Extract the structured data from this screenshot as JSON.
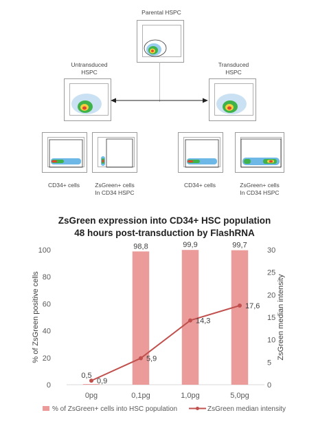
{
  "flow_panel": {
    "parental_label": "Parental HSPC",
    "untransduced_label_line1": "Untransduced",
    "untransduced_label_line2": "HSPC",
    "transduced_label_line1": "Transduced",
    "transduced_label_line2": "HSPC",
    "left_cd34_label": "CD34+ cells",
    "left_zs_label_line1": "ZsGreen+ cells",
    "left_zs_label_line2": "In CD34 HSPC",
    "right_cd34_label": "CD34+ cells",
    "right_zs_label_line1": "ZsGreen+ cells",
    "right_zs_label_line2": "In CD34 HSPC"
  },
  "chart_data": {
    "type": "bar",
    "title_line1": "ZsGreen expression into CD34+ HSC population",
    "title_line2": "48 hours post-transduction by FlashRNA",
    "categories": [
      "0pg",
      "0,1pg",
      "1,0pg",
      "5,0pg"
    ],
    "series": [
      {
        "name": "% of ZsGreen+ cells into HSC population",
        "type": "bar",
        "axis": "left",
        "values": [
          0.5,
          98.8,
          99.9,
          99.7
        ],
        "labels": [
          "0,5",
          "98,8",
          "99,9",
          "99,7"
        ],
        "color": "#ec9b9b"
      },
      {
        "name": "ZsGreen median intensity",
        "type": "line",
        "axis": "right",
        "values": [
          0.9,
          5.9,
          14.3,
          17.6
        ],
        "labels": [
          "0,9",
          "5,9",
          "14,3",
          "17,6"
        ],
        "color": "#c0504d"
      }
    ],
    "ylabel": "% of ZsGreen positive cells",
    "y2label": "ZsGreen median intensity",
    "ylim": [
      0,
      100
    ],
    "y2lim": [
      0,
      30
    ],
    "yticks": [
      0,
      20,
      40,
      60,
      80,
      100
    ],
    "y2ticks": [
      0,
      5,
      10,
      15,
      20,
      25,
      30
    ],
    "grid": false,
    "legend_position": "bottom"
  }
}
